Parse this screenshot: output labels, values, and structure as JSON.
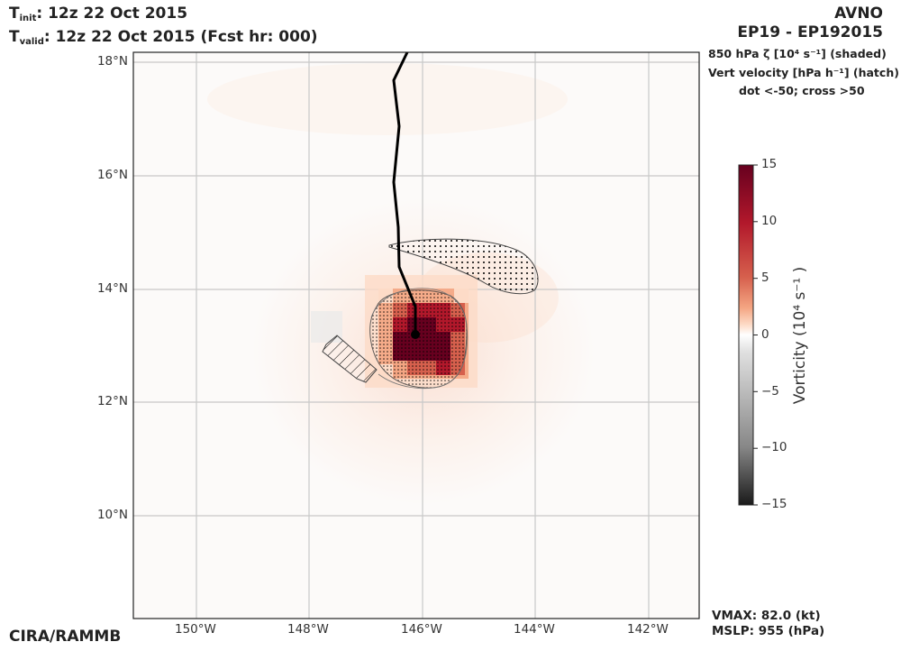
{
  "header": {
    "init_label": "T",
    "init_sub": "init",
    "init_value": ":  12z 22 Oct 2015",
    "valid_label": "T",
    "valid_sub": "valid",
    "valid_value": ": 12z 22 Oct 2015 (Fcst hr: 000)",
    "model": "AVNO",
    "storm_id": "EP19 - EP192015"
  },
  "legend": {
    "line1": "850 hPa ζ [10⁴ s⁻¹] (shaded)",
    "line2": "Vert velocity [hPa h⁻¹] (hatch)",
    "line3": "dot <-50; cross >50"
  },
  "map": {
    "lat_ticks": [
      "18°N",
      "16°N",
      "14°N",
      "12°N",
      "10°N"
    ],
    "lon_ticks": [
      "150°W",
      "148°W",
      "146°W",
      "144°W",
      "142°W"
    ],
    "storm_center": {
      "lon": -146.1,
      "lat": 13.2
    },
    "track": [
      [
        -145.8,
        18.2
      ],
      [
        -146.5,
        17.7
      ],
      [
        -146.4,
        16.9
      ],
      [
        -146.5,
        15.9
      ],
      [
        -146.4,
        15.1
      ],
      [
        -146.4,
        14.4
      ],
      [
        -146.1,
        13.9
      ],
      [
        -146.1,
        13.2
      ]
    ]
  },
  "colorbar": {
    "label": "Vorticity (10⁴  s⁻¹ )",
    "ticks": [
      "15",
      "10",
      "5",
      "0",
      "−5",
      "−10",
      "−15"
    ],
    "range": [
      -15,
      15
    ],
    "colors": {
      "high": "#67001f",
      "mid_high": "#d6604d",
      "low_pos": "#fddbc7",
      "zero": "#ffffff",
      "low_neg": "#bababa",
      "low": "#1a1a1a"
    }
  },
  "footer": {
    "credit": "CIRA/RAMMB",
    "vmax": "VMAX:  82.0 (kt)",
    "mslp": "MSLP:  955 (hPa)"
  }
}
